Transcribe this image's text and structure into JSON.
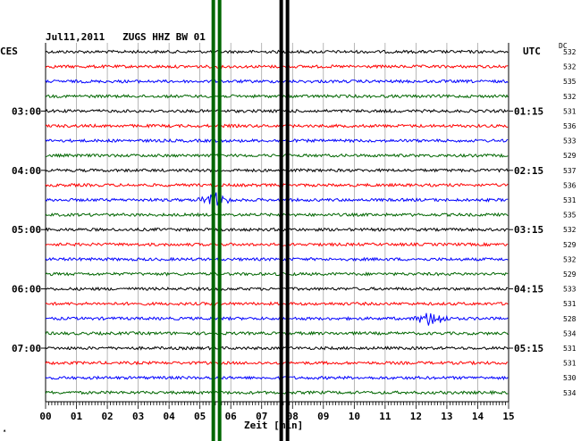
{
  "header": {
    "date": "Jul11,2011",
    "station": "ZUGS HHZ BW 01",
    "left_zone": "CES",
    "right_zone": "UTC",
    "right_column_header": "DC"
  },
  "colors": {
    "trace_cycle": [
      "#000000",
      "#ff0000",
      "#0000ff",
      "#006600"
    ],
    "grid": "#000000",
    "marker_green": "#006600",
    "marker_black": "#000000"
  },
  "chart_data": {
    "type": "line",
    "title": "",
    "xlabel": "Zeit [min]",
    "ylabel": "",
    "x_ticks": [
      "00",
      "01",
      "02",
      "03",
      "04",
      "05",
      "06",
      "07",
      "08",
      "09",
      "10",
      "11",
      "12",
      "13",
      "14",
      "15"
    ],
    "xlim": [
      0,
      15
    ],
    "row_count": 24,
    "left_time_labels": [
      {
        "row": 4,
        "label": "03:00"
      },
      {
        "row": 8,
        "label": "04:00"
      },
      {
        "row": 12,
        "label": "05:00"
      },
      {
        "row": 16,
        "label": "06:00"
      },
      {
        "row": 20,
        "label": "07:00"
      }
    ],
    "right_time_labels": [
      {
        "row": 4,
        "label": "01:15"
      },
      {
        "row": 8,
        "label": "02:15"
      },
      {
        "row": 12,
        "label": "03:15"
      },
      {
        "row": 16,
        "label": "04:15"
      },
      {
        "row": 20,
        "label": "05:15"
      }
    ],
    "dc_values": [
      "532",
      "532",
      "535",
      "532",
      "531",
      "536",
      "533",
      "529",
      "537",
      "536",
      "531",
      "535",
      "532",
      "529",
      "532",
      "529",
      "533",
      "531",
      "528",
      "534",
      "531",
      "531",
      "530",
      "534"
    ],
    "markers": [
      {
        "x_min": 5.55,
        "color": "#006600"
      },
      {
        "x_min": 7.75,
        "color": "#000000"
      }
    ],
    "events": [
      {
        "row": 10,
        "x_min": 5.5,
        "label": ""
      },
      {
        "row": 18,
        "x_min": 12.5,
        "label": ""
      }
    ]
  }
}
